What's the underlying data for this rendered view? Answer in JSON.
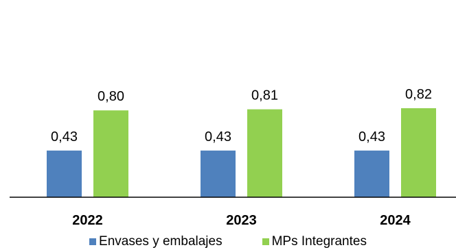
{
  "chart_data": {
    "type": "bar",
    "categories": [
      "2022",
      "2023",
      "2024"
    ],
    "series": [
      {
        "name": "Envases y embalajes",
        "values": [
          0.43,
          0.43,
          0.43
        ],
        "labels": [
          "0,43",
          "0,43",
          "0,43"
        ],
        "color": "#4f81bd"
      },
      {
        "name": "MPs Integrantes",
        "values": [
          0.8,
          0.81,
          0.82
        ],
        "labels": [
          "0,80",
          "0,81",
          "0,82"
        ],
        "color": "#92d050"
      }
    ],
    "title": "",
    "xlabel": "",
    "ylabel": "",
    "ylim": [
      0,
      0.9
    ],
    "grid": false,
    "legend_position": "bottom"
  }
}
